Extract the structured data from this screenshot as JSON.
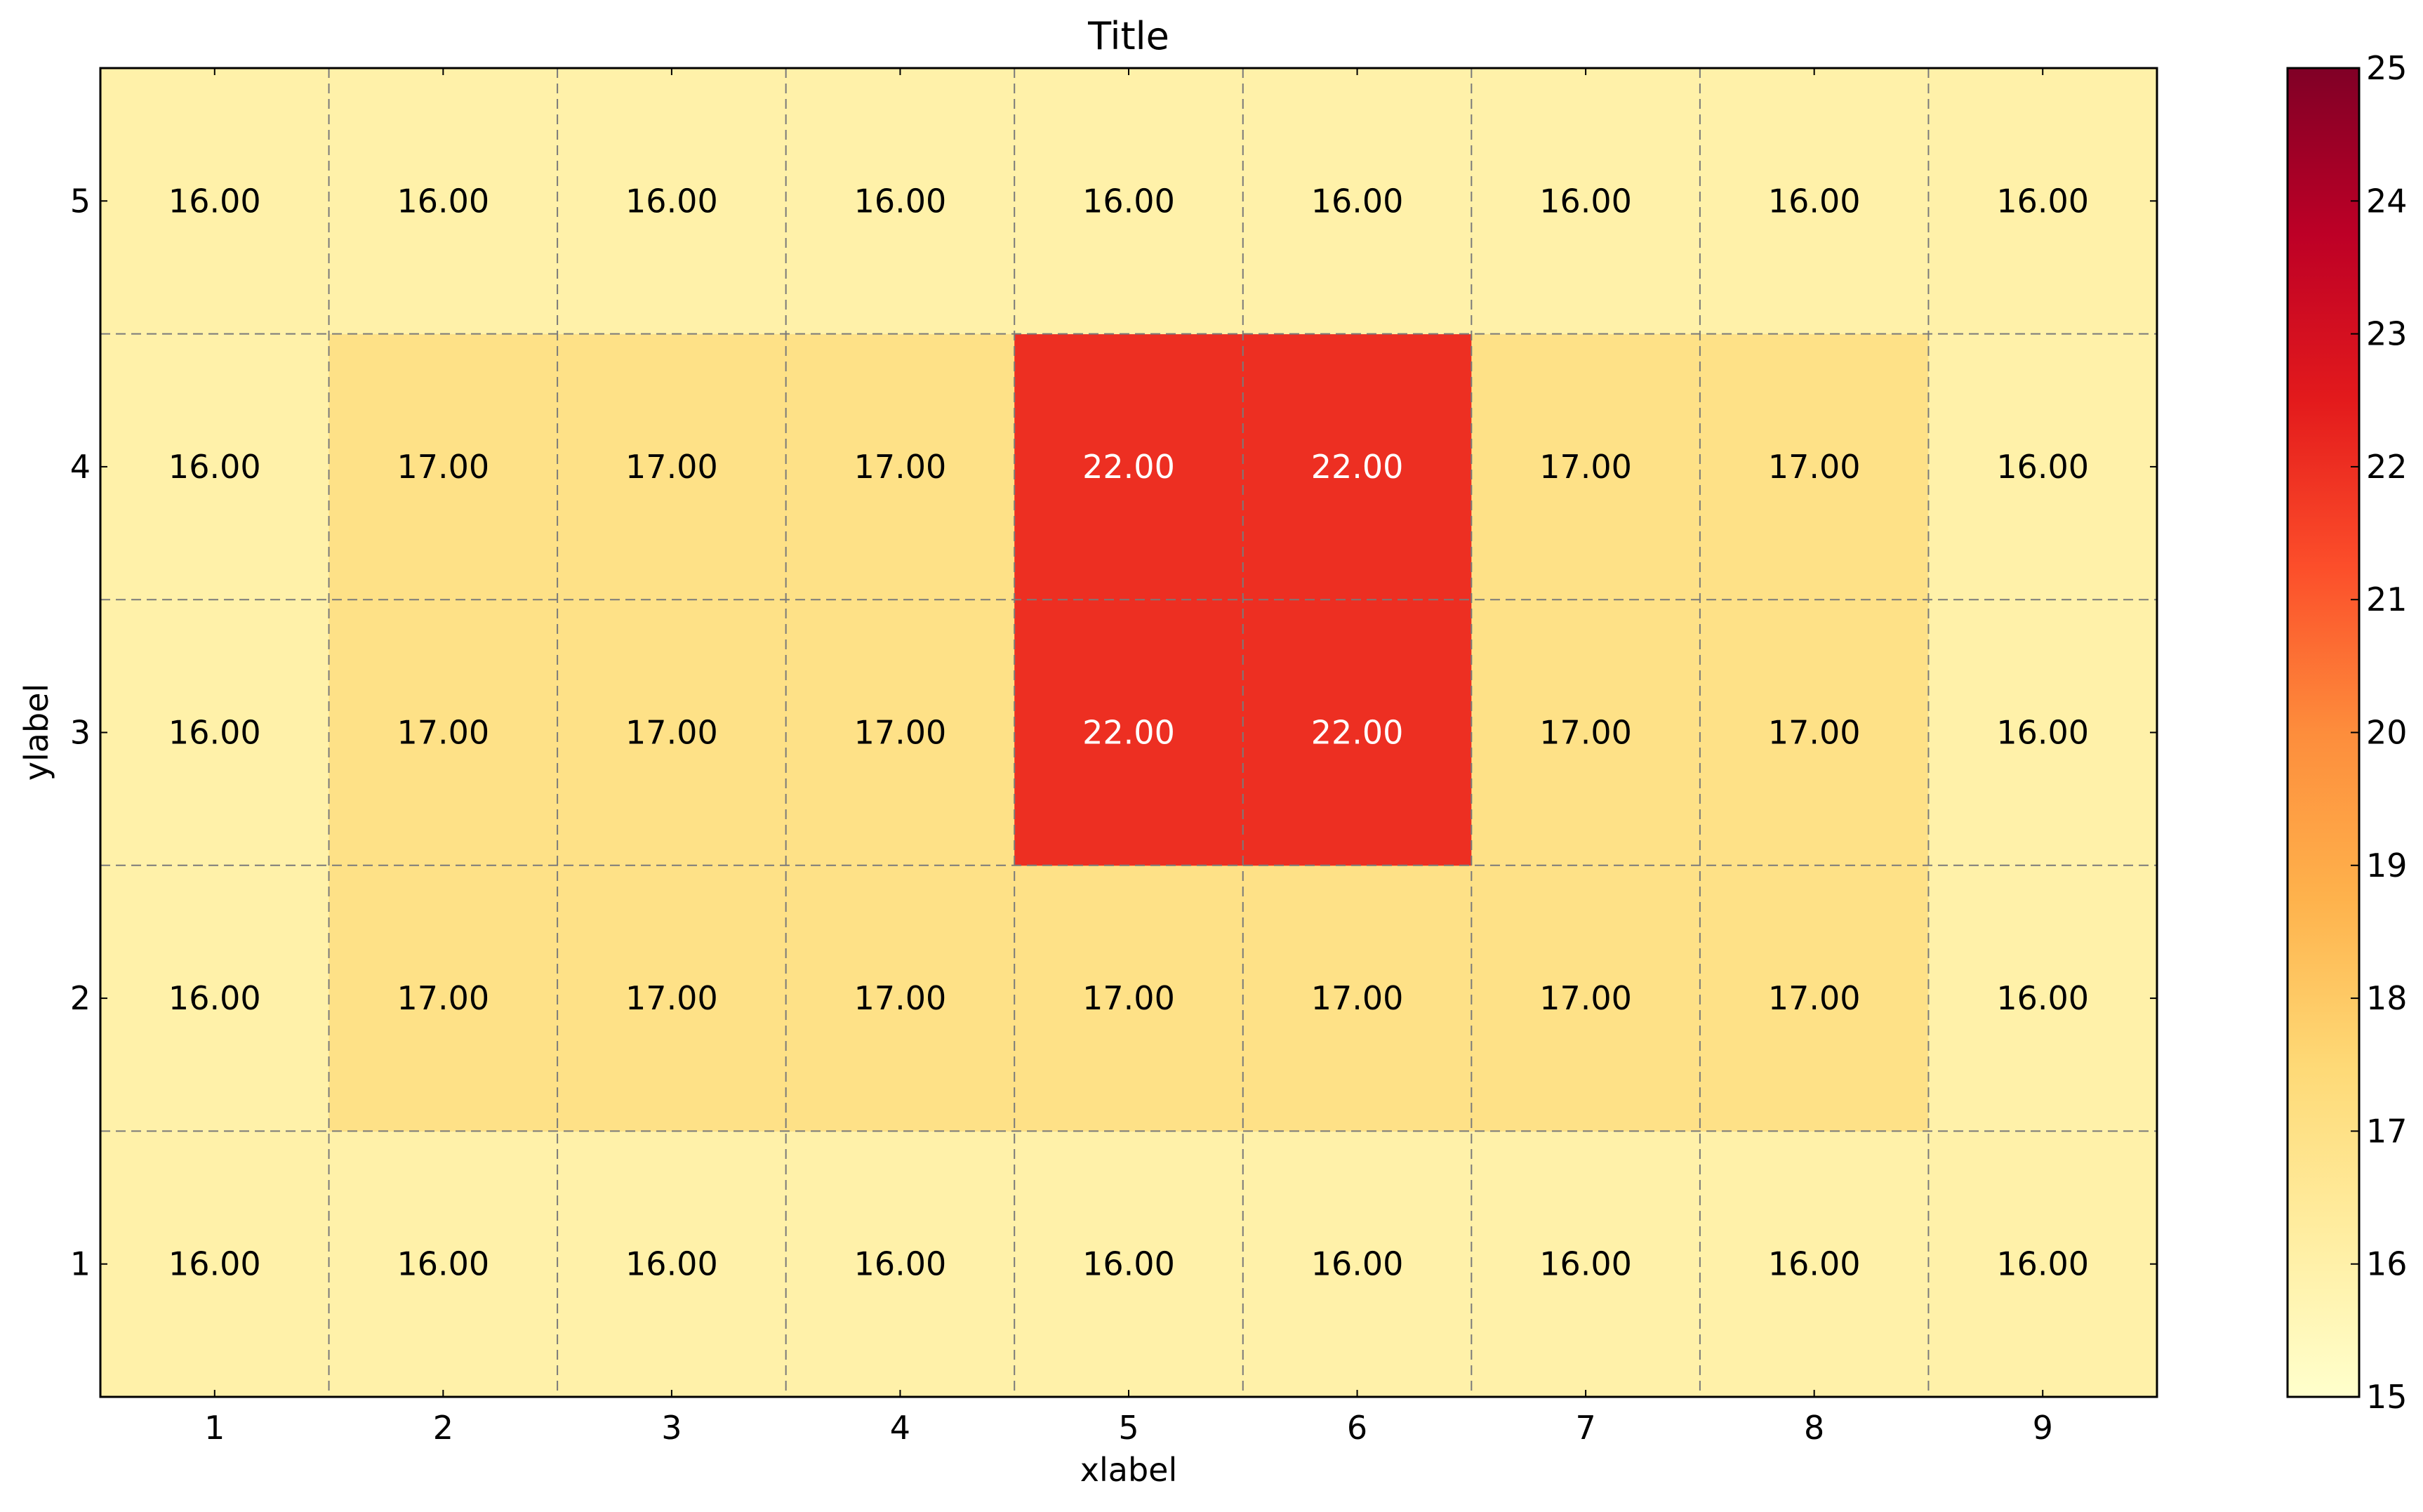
{
  "chart_data": {
    "type": "heatmap",
    "title": "Title",
    "xlabel": "xlabel",
    "ylabel": "ylabel",
    "x": [
      1,
      2,
      3,
      4,
      5,
      6,
      7,
      8,
      9
    ],
    "y": [
      1,
      2,
      3,
      4,
      5
    ],
    "x_ticks": [
      "1",
      "2",
      "3",
      "4",
      "5",
      "6",
      "7",
      "8",
      "9"
    ],
    "y_ticks": [
      "1",
      "2",
      "3",
      "4",
      "5"
    ],
    "values": [
      [
        16,
        16,
        16,
        16,
        16,
        16,
        16,
        16,
        16
      ],
      [
        16,
        17,
        17,
        17,
        17,
        17,
        17,
        17,
        16
      ],
      [
        16,
        17,
        17,
        17,
        22,
        22,
        17,
        17,
        16
      ],
      [
        16,
        17,
        17,
        17,
        22,
        22,
        17,
        17,
        16
      ],
      [
        16,
        16,
        16,
        16,
        16,
        16,
        16,
        16,
        16
      ]
    ],
    "cell_labels": [
      [
        "16.00",
        "16.00",
        "16.00",
        "16.00",
        "16.00",
        "16.00",
        "16.00",
        "16.00",
        "16.00"
      ],
      [
        "16.00",
        "17.00",
        "17.00",
        "17.00",
        "17.00",
        "17.00",
        "17.00",
        "17.00",
        "16.00"
      ],
      [
        "16.00",
        "17.00",
        "17.00",
        "17.00",
        "22.00",
        "22.00",
        "17.00",
        "17.00",
        "16.00"
      ],
      [
        "16.00",
        "17.00",
        "17.00",
        "17.00",
        "22.00",
        "22.00",
        "17.00",
        "17.00",
        "16.00"
      ],
      [
        "16.00",
        "16.00",
        "16.00",
        "16.00",
        "16.00",
        "16.00",
        "16.00",
        "16.00",
        "16.00"
      ]
    ],
    "colorbar": {
      "range": [
        15,
        25
      ],
      "ticks": [
        "15",
        "16",
        "17",
        "18",
        "19",
        "20",
        "21",
        "22",
        "23",
        "24",
        "25"
      ],
      "colormap": "YlOrRd",
      "stops": [
        "#ffffcc",
        "#ffeda0",
        "#fed976",
        "#feb24c",
        "#fd8d3c",
        "#fc4e2a",
        "#e31a1c",
        "#bd0026",
        "#800026"
      ]
    },
    "grid": true,
    "grid_style": "dashed",
    "colors": {
      "light_text": "#ffffff",
      "dark_text": "#000000",
      "grid": "#7a7a7a",
      "axes": "#000000"
    }
  }
}
